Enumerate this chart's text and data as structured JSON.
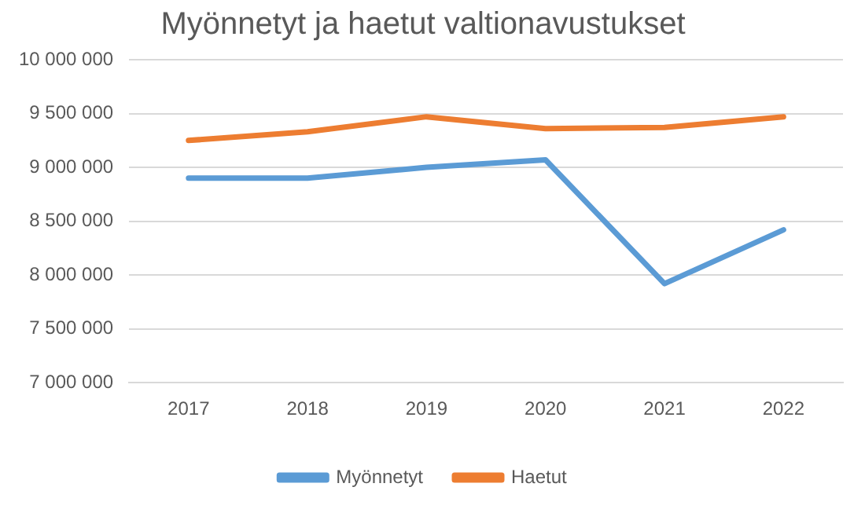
{
  "chart_data": {
    "type": "line",
    "title": "Myönnetyt ja haetut valtionavustukset",
    "categories": [
      "2017",
      "2018",
      "2019",
      "2020",
      "2021",
      "2022"
    ],
    "series": [
      {
        "name": "Myönnetyt",
        "color": "#5b9bd5",
        "values": [
          8900000,
          8900000,
          9000000,
          9070000,
          7920000,
          8420000
        ]
      },
      {
        "name": "Haetut",
        "color": "#ed7d31",
        "values": [
          9250000,
          9330000,
          9470000,
          9360000,
          9370000,
          9470000
        ]
      }
    ],
    "ylim": [
      7000000,
      10000000
    ],
    "yticks": [
      {
        "value": 7000000,
        "label": "7 000 000"
      },
      {
        "value": 7500000,
        "label": "7 500 000"
      },
      {
        "value": 8000000,
        "label": "8 000 000"
      },
      {
        "value": 8500000,
        "label": "8 500 000"
      },
      {
        "value": 9000000,
        "label": "9 000 000"
      },
      {
        "value": 9500000,
        "label": "9 500 000"
      },
      {
        "value": 10000000,
        "label": "10 000 000"
      }
    ],
    "grid": "y",
    "legend": "bottom",
    "marker": "none",
    "line_style": "solid"
  }
}
